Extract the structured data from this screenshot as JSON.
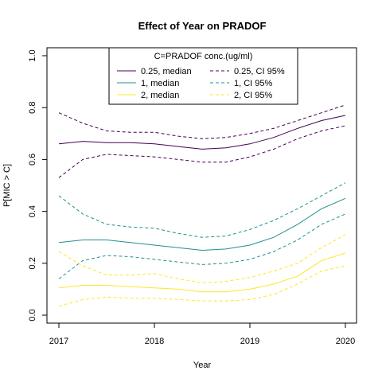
{
  "chart_data": {
    "type": "line",
    "title": "Effect of Year on PRADOF",
    "xlabel": "Year",
    "ylabel": "P[MIC > C]",
    "xlim": [
      2017,
      2020
    ],
    "ylim": [
      0,
      1
    ],
    "x_ticks": [
      "2017",
      "2018",
      "2019",
      "2020"
    ],
    "y_ticks": [
      "0.0",
      "0.2",
      "0.4",
      "0.6",
      "0.8",
      "1.0"
    ],
    "grid": false,
    "legend": {
      "title": "C=PRADOF conc.(ug/ml)",
      "position": "top-center",
      "columns": 2
    },
    "x": [
      2017,
      2017.25,
      2017.5,
      2017.75,
      2018,
      2018.25,
      2018.5,
      2018.75,
      2019,
      2019.25,
      2019.5,
      2019.75,
      2020
    ],
    "series": [
      {
        "name": "0.25, median",
        "color": "#440154",
        "style": "solid",
        "values": [
          0.66,
          0.67,
          0.665,
          0.665,
          0.66,
          0.65,
          0.64,
          0.645,
          0.66,
          0.685,
          0.72,
          0.75,
          0.77
        ]
      },
      {
        "name": "1, median",
        "color": "#21908C",
        "style": "solid",
        "values": [
          0.28,
          0.29,
          0.29,
          0.28,
          0.27,
          0.26,
          0.25,
          0.255,
          0.27,
          0.3,
          0.35,
          0.41,
          0.45
        ]
      },
      {
        "name": "2, median",
        "color": "#FDE725",
        "style": "solid",
        "values": [
          0.105,
          0.115,
          0.115,
          0.11,
          0.105,
          0.1,
          0.09,
          0.09,
          0.1,
          0.12,
          0.15,
          0.21,
          0.24
        ]
      },
      {
        "name": "0.25, CI 95%",
        "color": "#440154",
        "style": "dashed",
        "values": [
          0.78,
          0.74,
          0.71,
          0.705,
          0.705,
          0.69,
          0.68,
          0.685,
          0.7,
          0.72,
          0.75,
          0.78,
          0.81
        ]
      },
      {
        "name": "0.25, CI 95%",
        "color": "#440154",
        "style": "dashed",
        "legend": false,
        "values": [
          0.53,
          0.6,
          0.62,
          0.615,
          0.61,
          0.6,
          0.59,
          0.59,
          0.61,
          0.64,
          0.68,
          0.71,
          0.73
        ]
      },
      {
        "name": "1, CI 95%",
        "color": "#21908C",
        "style": "dashed",
        "values": [
          0.46,
          0.39,
          0.35,
          0.34,
          0.335,
          0.315,
          0.3,
          0.305,
          0.33,
          0.365,
          0.41,
          0.46,
          0.51
        ]
      },
      {
        "name": "1, CI 95%",
        "color": "#21908C",
        "style": "dashed",
        "legend": false,
        "values": [
          0.14,
          0.21,
          0.23,
          0.225,
          0.215,
          0.205,
          0.195,
          0.2,
          0.215,
          0.245,
          0.29,
          0.35,
          0.39
        ]
      },
      {
        "name": "2, CI 95%",
        "color": "#FDE725",
        "style": "dashed",
        "values": [
          0.245,
          0.19,
          0.155,
          0.155,
          0.16,
          0.14,
          0.125,
          0.13,
          0.145,
          0.17,
          0.2,
          0.26,
          0.31
        ]
      },
      {
        "name": "2, CI 95%",
        "color": "#FDE725",
        "style": "dashed",
        "legend": false,
        "values": [
          0.035,
          0.06,
          0.07,
          0.065,
          0.065,
          0.06,
          0.055,
          0.055,
          0.06,
          0.08,
          0.12,
          0.17,
          0.19
        ]
      }
    ]
  }
}
